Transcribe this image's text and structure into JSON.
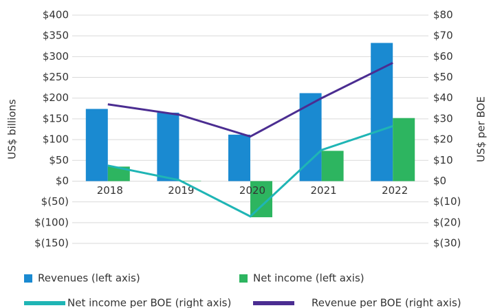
{
  "chart_data": {
    "type": "bar",
    "y_label": "US$ billions",
    "y2_label": "US$ per BOE",
    "categories": [
      "2018",
      "2019",
      "2020",
      "2021",
      "2022"
    ],
    "series": [
      {
        "name": "Revenues (left axis)",
        "color": "#1a8ad1",
        "values": [
          174,
          165,
          112,
          212,
          333
        ]
      },
      {
        "name": "Net income (left axis)",
        "color": "#2db560",
        "values": [
          35,
          1,
          -87,
          73,
          152
        ]
      },
      {
        "name": "Net income per BOE (right axis)",
        "type": "line",
        "axis": "y2",
        "color": "#1fb5b5",
        "values": [
          7.5,
          0.5,
          -17,
          15,
          26.5
        ]
      },
      {
        "name": "Revenue per BOE (right axis)",
        "type": "line",
        "axis": "y2",
        "color": "#4b2d91",
        "values": [
          37,
          32,
          21.5,
          40,
          57
        ]
      }
    ],
    "ylim": [
      -150,
      400
    ],
    "yticks": [
      {
        "value": 400,
        "label": "$400"
      },
      {
        "value": 350,
        "label": "$350"
      },
      {
        "value": 300,
        "label": "$300"
      },
      {
        "value": 250,
        "label": "$250"
      },
      {
        "value": 200,
        "label": "$200"
      },
      {
        "value": 150,
        "label": "$150"
      },
      {
        "value": 100,
        "label": "$100"
      },
      {
        "value": 50,
        "label": "$50"
      },
      {
        "value": 0,
        "label": "$0"
      },
      {
        "value": -50,
        "label": "$(50)"
      },
      {
        "value": -100,
        "label": "$(100)"
      },
      {
        "value": -150,
        "label": "$(150)"
      }
    ],
    "y2lim": [
      -30,
      80
    ],
    "y2ticks": [
      {
        "value": 80,
        "label": "$80"
      },
      {
        "value": 70,
        "label": "$70"
      },
      {
        "value": 60,
        "label": "$60"
      },
      {
        "value": 50,
        "label": "$50"
      },
      {
        "value": 40,
        "label": "$40"
      },
      {
        "value": 30,
        "label": "$30"
      },
      {
        "value": 20,
        "label": "$20"
      },
      {
        "value": 10,
        "label": "$10"
      },
      {
        "value": 0,
        "label": "$0"
      },
      {
        "value": -10,
        "label": "$(10)"
      },
      {
        "value": -20,
        "label": "$(20)"
      },
      {
        "value": -30,
        "label": "$(30)"
      }
    ],
    "grid": true
  }
}
